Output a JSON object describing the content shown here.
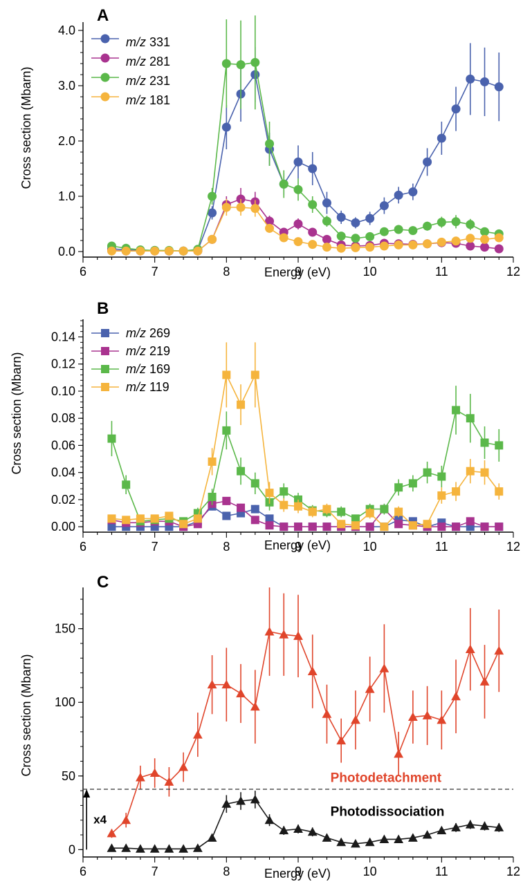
{
  "chart_data": [
    {
      "panel": "A",
      "type": "line",
      "xlabel": "Energy (eV)",
      "ylabel": "Cross section (Mbarn)",
      "xlim": [
        6,
        12
      ],
      "ylim": [
        -0.1,
        4.15
      ],
      "xticks": [
        6,
        7,
        8,
        9,
        10,
        11,
        12
      ],
      "yticks": [
        0.0,
        1.0,
        2.0,
        3.0,
        4.0
      ],
      "ytick_labels": [
        "0.0",
        "1.0",
        "2.0",
        "3.0",
        "4.0"
      ],
      "marker": "circle",
      "legend_position": "top-left",
      "x": [
        6.4,
        6.6,
        6.8,
        7.0,
        7.2,
        7.4,
        7.6,
        7.8,
        8.0,
        8.2,
        8.4,
        8.6,
        8.8,
        9.0,
        9.2,
        9.4,
        9.6,
        9.8,
        10.0,
        10.2,
        10.4,
        10.6,
        10.8,
        11.0,
        11.2,
        11.4,
        11.6,
        11.8
      ],
      "series": [
        {
          "prefix": "m/z",
          "mass": "331",
          "color": "#4a62ad",
          "values": [
            0.05,
            0.03,
            0.02,
            0.02,
            0.01,
            0.01,
            0.02,
            0.7,
            2.25,
            2.85,
            3.2,
            1.85,
            1.22,
            1.62,
            1.5,
            0.88,
            0.62,
            0.52,
            0.6,
            0.83,
            1.02,
            1.08,
            1.62,
            2.05,
            2.58,
            3.12,
            3.07,
            2.98
          ],
          "errors": [
            0.03,
            0.02,
            0.02,
            0.02,
            0.02,
            0.02,
            0.02,
            0.12,
            0.4,
            0.5,
            0.5,
            0.3,
            0.2,
            0.3,
            0.3,
            0.2,
            0.12,
            0.1,
            0.12,
            0.15,
            0.15,
            0.15,
            0.25,
            0.3,
            0.4,
            0.65,
            0.62,
            0.62
          ]
        },
        {
          "prefix": "m/z",
          "mass": "281",
          "color": "#a9338f",
          "values": [
            0.02,
            0.01,
            0.01,
            0.01,
            0.01,
            0.01,
            0.01,
            0.22,
            0.85,
            0.95,
            0.9,
            0.55,
            0.35,
            0.5,
            0.35,
            0.22,
            0.12,
            0.1,
            0.11,
            0.15,
            0.14,
            0.13,
            0.14,
            0.16,
            0.15,
            0.1,
            0.08,
            0.05
          ],
          "errors": [
            0.02,
            0.01,
            0.01,
            0.01,
            0.01,
            0.01,
            0.01,
            0.05,
            0.15,
            0.2,
            0.18,
            0.1,
            0.06,
            0.1,
            0.07,
            0.05,
            0.03,
            0.03,
            0.03,
            0.03,
            0.03,
            0.03,
            0.03,
            0.03,
            0.03,
            0.03,
            0.02,
            0.02
          ]
        },
        {
          "prefix": "m/z",
          "mass": "231",
          "color": "#5bb84a",
          "values": [
            0.1,
            0.06,
            0.03,
            0.02,
            0.02,
            0.01,
            0.04,
            1.0,
            3.4,
            3.38,
            3.42,
            1.95,
            1.22,
            1.12,
            0.85,
            0.55,
            0.28,
            0.24,
            0.27,
            0.36,
            0.4,
            0.38,
            0.46,
            0.53,
            0.54,
            0.49,
            0.36,
            0.32
          ],
          "errors": [
            0.03,
            0.02,
            0.02,
            0.02,
            0.02,
            0.02,
            0.02,
            0.15,
            0.8,
            0.8,
            0.85,
            0.4,
            0.25,
            0.2,
            0.15,
            0.1,
            0.05,
            0.05,
            0.05,
            0.06,
            0.06,
            0.06,
            0.08,
            0.1,
            0.12,
            0.1,
            0.07,
            0.06
          ]
        },
        {
          "prefix": "m/z",
          "mass": "181",
          "color": "#f5b43d",
          "values": [
            0.01,
            0.01,
            0.01,
            0.01,
            0.01,
            0.01,
            0.01,
            0.22,
            0.8,
            0.8,
            0.78,
            0.42,
            0.25,
            0.18,
            0.13,
            0.08,
            0.06,
            0.07,
            0.08,
            0.1,
            0.12,
            0.12,
            0.14,
            0.17,
            0.19,
            0.24,
            0.22,
            0.25
          ],
          "errors": [
            0.01,
            0.01,
            0.01,
            0.01,
            0.01,
            0.01,
            0.01,
            0.05,
            0.15,
            0.15,
            0.15,
            0.08,
            0.05,
            0.04,
            0.03,
            0.02,
            0.02,
            0.02,
            0.02,
            0.02,
            0.03,
            0.03,
            0.03,
            0.03,
            0.04,
            0.05,
            0.05,
            0.05
          ]
        }
      ]
    },
    {
      "panel": "B",
      "type": "line",
      "xlabel": "Energy (eV)",
      "ylabel": "Cross section (Mbarn)",
      "xlim": [
        6,
        12
      ],
      "ylim": [
        -0.004,
        0.153
      ],
      "xticks": [
        6,
        7,
        8,
        9,
        10,
        11,
        12
      ],
      "yticks": [
        0.0,
        0.02,
        0.04,
        0.06,
        0.08,
        0.1,
        0.12,
        0.14
      ],
      "ytick_labels": [
        "0.00",
        "0.02",
        "0.04",
        "0.06",
        "0.08",
        "0.10",
        "0.12",
        "0.14"
      ],
      "marker": "square",
      "legend_position": "top-left",
      "x": [
        6.4,
        6.6,
        6.8,
        7.0,
        7.2,
        7.4,
        7.6,
        7.8,
        8.0,
        8.2,
        8.4,
        8.6,
        8.8,
        9.0,
        9.2,
        9.4,
        9.6,
        9.8,
        10.0,
        10.2,
        10.4,
        10.6,
        10.8,
        11.0,
        11.2,
        11.4,
        11.6,
        11.8
      ],
      "series": [
        {
          "prefix": "m/z",
          "mass": "269",
          "color": "#4a62ad",
          "values": [
            0.0,
            0.0,
            0.0,
            0.0,
            0.0,
            0.0,
            0.004,
            0.015,
            0.008,
            0.01,
            0.013,
            0.006,
            0.0,
            0.0,
            0.0,
            0.0,
            0.0,
            0.0,
            0.0,
            0.0,
            0.005,
            0.004,
            0.0,
            0.003,
            0.0,
            0.0,
            0.0,
            0.0
          ],
          "errors": [
            0.001,
            0.001,
            0.001,
            0.001,
            0.001,
            0.001,
            0.002,
            0.003,
            0.002,
            0.002,
            0.003,
            0.002,
            0.001,
            0.001,
            0.001,
            0.001,
            0.001,
            0.001,
            0.001,
            0.001,
            0.002,
            0.002,
            0.001,
            0.001,
            0.001,
            0.001,
            0.001,
            0.001
          ]
        },
        {
          "prefix": "m/z",
          "mass": "219",
          "color": "#a9338f",
          "values": [
            0.005,
            0.003,
            0.003,
            0.004,
            0.004,
            0.0,
            0.002,
            0.017,
            0.019,
            0.014,
            0.005,
            0.001,
            0.0,
            0.0,
            0.0,
            0.0,
            0.0,
            0.0,
            0.0,
            0.013,
            0.002,
            0.001,
            0.0,
            0.0,
            0.0,
            0.004,
            0.0,
            0.0
          ],
          "errors": [
            0.002,
            0.002,
            0.002,
            0.002,
            0.002,
            0.001,
            0.002,
            0.003,
            0.003,
            0.003,
            0.002,
            0.001,
            0.001,
            0.001,
            0.001,
            0.001,
            0.001,
            0.001,
            0.001,
            0.003,
            0.001,
            0.001,
            0.001,
            0.001,
            0.001,
            0.002,
            0.001,
            0.001
          ]
        },
        {
          "prefix": "m/z",
          "mass": "169",
          "color": "#5bb84a",
          "values": [
            0.065,
            0.031,
            0.004,
            0.005,
            0.006,
            0.004,
            0.01,
            0.022,
            0.071,
            0.041,
            0.032,
            0.018,
            0.026,
            0.02,
            0.012,
            0.011,
            0.011,
            0.006,
            0.013,
            0.013,
            0.029,
            0.032,
            0.04,
            0.037,
            0.086,
            0.08,
            0.062,
            0.06
          ],
          "errors": [
            0.013,
            0.007,
            0.002,
            0.002,
            0.002,
            0.002,
            0.004,
            0.006,
            0.014,
            0.01,
            0.008,
            0.006,
            0.006,
            0.005,
            0.004,
            0.004,
            0.004,
            0.003,
            0.004,
            0.004,
            0.006,
            0.006,
            0.008,
            0.008,
            0.018,
            0.018,
            0.012,
            0.012
          ]
        },
        {
          "prefix": "m/z",
          "mass": "119",
          "color": "#f5b43d",
          "values": [
            0.006,
            0.005,
            0.006,
            0.006,
            0.008,
            0.002,
            0.006,
            0.048,
            0.112,
            0.09,
            0.112,
            0.025,
            0.016,
            0.015,
            0.011,
            0.013,
            0.002,
            0.001,
            0.01,
            0.0,
            0.011,
            0.001,
            0.002,
            0.023,
            0.026,
            0.041,
            0.04,
            0.026
          ],
          "errors": [
            0.002,
            0.002,
            0.002,
            0.002,
            0.002,
            0.002,
            0.002,
            0.01,
            0.024,
            0.015,
            0.024,
            0.008,
            0.005,
            0.005,
            0.004,
            0.004,
            0.002,
            0.002,
            0.004,
            0.002,
            0.004,
            0.002,
            0.002,
            0.006,
            0.007,
            0.009,
            0.009,
            0.006
          ]
        }
      ]
    },
    {
      "panel": "C",
      "type": "line",
      "xlabel": "Energy (eV)",
      "ylabel": "Cross section (Mbarn)",
      "xlim": [
        6,
        12
      ],
      "ylim": [
        -5,
        178
      ],
      "xticks": [
        6,
        7,
        8,
        9,
        10,
        11,
        12
      ],
      "yticks": [
        0,
        50,
        100,
        150
      ],
      "ytick_labels": [
        "0",
        "50",
        "100",
        "150"
      ],
      "marker": "triangle",
      "dashed_line_y": 41,
      "scale_marker": {
        "label": "x4",
        "from": 0,
        "to": 41,
        "x": 6.05
      },
      "x": [
        6.4,
        6.6,
        6.8,
        7.0,
        7.2,
        7.4,
        7.6,
        7.8,
        8.0,
        8.2,
        8.4,
        8.6,
        8.8,
        9.0,
        9.2,
        9.4,
        9.6,
        9.8,
        10.0,
        10.2,
        10.4,
        10.6,
        10.8,
        11.0,
        11.2,
        11.4,
        11.6,
        11.8
      ],
      "series": [
        {
          "name": "Photodetachment",
          "color": "#e0452b",
          "label_pos": [
            9.45,
            46
          ],
          "values": [
            11,
            20,
            49,
            52,
            46,
            56,
            78,
            112,
            112,
            106,
            97,
            148,
            146,
            145,
            121,
            92,
            74,
            88,
            109,
            123,
            65,
            90,
            91,
            88,
            104,
            136,
            114,
            135
          ],
          "errors": [
            3,
            5,
            8,
            10,
            10,
            10,
            15,
            20,
            25,
            20,
            25,
            30,
            28,
            28,
            25,
            20,
            15,
            20,
            22,
            30,
            15,
            18,
            20,
            20,
            25,
            28,
            25,
            28
          ]
        },
        {
          "name": "Photodissociation",
          "color": "#1a1a1a",
          "label_pos": [
            9.45,
            23
          ],
          "values": [
            1,
            1,
            0.5,
            0.5,
            0.5,
            0.5,
            1,
            8,
            31,
            33,
            34,
            20,
            13,
            14,
            12,
            8,
            5,
            4,
            5,
            7,
            7,
            8,
            10,
            13,
            15,
            17,
            16,
            15
          ],
          "errors": [
            1,
            1,
            1,
            1,
            1,
            1,
            1,
            2,
            6,
            6,
            6,
            4,
            3,
            3,
            3,
            2,
            2,
            2,
            2,
            2,
            2,
            2,
            2,
            2,
            3,
            3,
            3,
            3
          ]
        }
      ]
    }
  ]
}
